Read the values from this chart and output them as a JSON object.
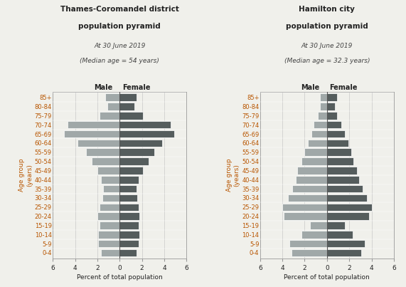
{
  "age_groups_bottom_to_top": [
    "0-4",
    "5-9",
    "10-14",
    "15-19",
    "20-24",
    "25-29",
    "30-34",
    "35-39",
    "40-44",
    "45-49",
    "50-54",
    "55-59",
    "60-64",
    "65-69",
    "70-74",
    "75-79",
    "80-84",
    "85+"
  ],
  "thames": {
    "title": "Thames-Coromandel district\npopulation pyramid",
    "subtitle_line1": "At 30 June 2019",
    "subtitle_line2": "(Median age = 54 years)",
    "male": [
      1.7,
      1.9,
      1.9,
      1.8,
      2.0,
      1.8,
      1.55,
      1.5,
      1.7,
      2.0,
      2.5,
      3.0,
      3.8,
      5.0,
      4.7,
      1.8,
      1.1,
      1.3
    ],
    "female": [
      1.5,
      1.7,
      1.8,
      1.7,
      1.8,
      1.7,
      1.6,
      1.5,
      1.7,
      2.1,
      2.6,
      3.1,
      3.8,
      4.9,
      4.6,
      2.1,
      1.3,
      1.5
    ]
  },
  "hamilton": {
    "title": "Hamilton city\npopulation pyramid",
    "subtitle_line1": "At 30 June 2019",
    "subtitle_line2": "(Median age = 32.3 years)",
    "male": [
      3.2,
      3.4,
      2.3,
      1.5,
      3.9,
      4.0,
      3.5,
      3.1,
      2.8,
      2.7,
      2.3,
      2.0,
      1.7,
      1.4,
      1.2,
      0.8,
      0.6,
      0.6
    ],
    "female": [
      3.1,
      3.4,
      2.3,
      1.6,
      3.8,
      4.0,
      3.6,
      3.2,
      2.9,
      2.7,
      2.4,
      2.2,
      1.9,
      1.6,
      1.3,
      0.9,
      0.7,
      0.9
    ]
  },
  "male_color": "#a0a8a8",
  "female_color": "#555d5d",
  "title_color": "#222222",
  "subtitle_color": "#444444",
  "age_label_color": "#b85500",
  "xlabel": "Percent of total population",
  "ylabel": "Age group\n(years)",
  "xlim": 6,
  "background_color": "#f0f0eb"
}
